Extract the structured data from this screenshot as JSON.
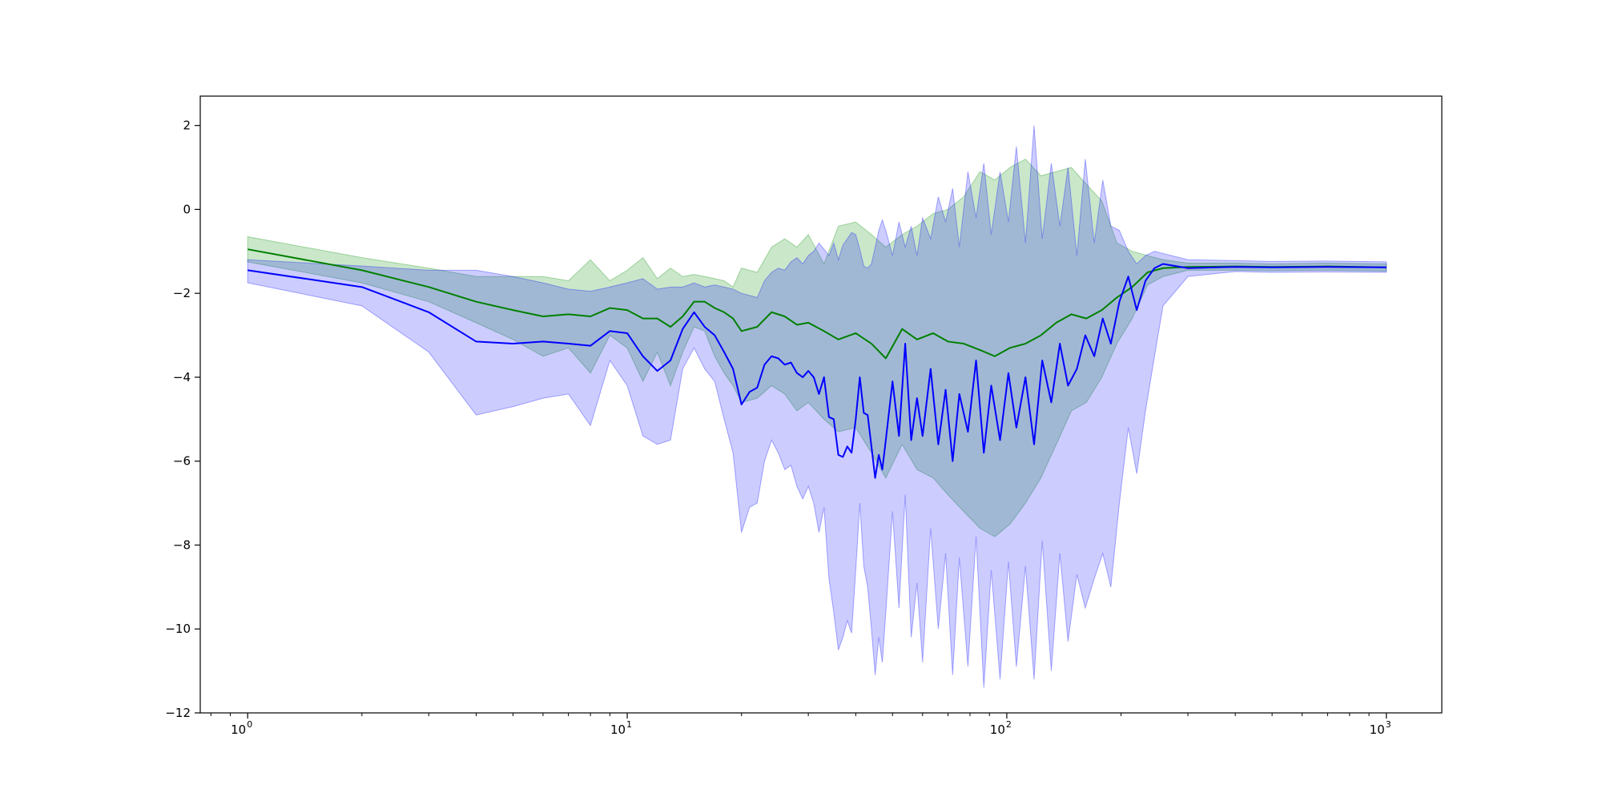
{
  "chart_data": {
    "type": "line",
    "title": "",
    "xlabel": "",
    "ylabel": "",
    "x_scale": "log",
    "xlim": [
      0.75,
      1400
    ],
    "ylim": [
      -12,
      2.7
    ],
    "grid": false,
    "legend": "none",
    "x_ticks": [
      {
        "value": 1,
        "base": "10",
        "exp": "0"
      },
      {
        "value": 10,
        "base": "10",
        "exp": "1"
      },
      {
        "value": 100,
        "base": "10",
        "exp": "2"
      },
      {
        "value": 1000,
        "base": "10",
        "exp": "3"
      }
    ],
    "y_ticks": [
      {
        "value": 2,
        "label": "2"
      },
      {
        "value": 0,
        "label": "0"
      },
      {
        "value": -2,
        "label": "−2"
      },
      {
        "value": -4,
        "label": "−4"
      },
      {
        "value": -6,
        "label": "−6"
      },
      {
        "value": -8,
        "label": "−8"
      },
      {
        "value": -10,
        "label": "−10"
      },
      {
        "value": -12,
        "label": "−12"
      }
    ],
    "series": [
      {
        "color": "#008000",
        "band_color": "#2ca02c",
        "band_opacity": 0.25,
        "x": [
          1,
          2,
          3,
          4,
          5,
          6,
          7,
          8,
          9,
          10,
          11,
          12,
          13,
          14,
          15,
          16,
          17,
          18,
          19,
          20,
          22,
          24,
          26,
          28,
          30,
          33,
          36,
          40,
          44,
          48,
          53,
          58,
          64,
          70,
          77,
          85,
          93,
          102,
          112,
          123,
          135,
          148,
          162,
          178,
          195,
          214,
          235,
          258,
          300,
          400,
          500,
          700,
          1000
        ],
        "y": [
          -0.95,
          -1.45,
          -1.85,
          -2.2,
          -2.4,
          -2.55,
          -2.5,
          -2.55,
          -2.35,
          -2.4,
          -2.6,
          -2.6,
          -2.8,
          -2.55,
          -2.2,
          -2.2,
          -2.35,
          -2.45,
          -2.6,
          -2.9,
          -2.8,
          -2.45,
          -2.55,
          -2.75,
          -2.7,
          -2.9,
          -3.1,
          -2.95,
          -3.2,
          -3.55,
          -2.85,
          -3.1,
          -2.95,
          -3.15,
          -3.2,
          -3.35,
          -3.5,
          -3.3,
          -3.2,
          -3.0,
          -2.7,
          -2.5,
          -2.6,
          -2.4,
          -2.1,
          -1.85,
          -1.5,
          -1.4,
          -1.37,
          -1.36,
          -1.37,
          -1.36,
          -1.38
        ],
        "lower": [
          -1.25,
          -1.75,
          -2.2,
          -2.7,
          -3.1,
          -3.5,
          -3.3,
          -3.9,
          -3.0,
          -3.3,
          -4.1,
          -3.4,
          -4.2,
          -3.4,
          -2.8,
          -2.9,
          -3.5,
          -3.9,
          -4.2,
          -4.6,
          -4.5,
          -4.2,
          -4.4,
          -4.8,
          -4.6,
          -5.0,
          -5.3,
          -5.2,
          -5.8,
          -6.4,
          -5.6,
          -6.2,
          -6.4,
          -6.8,
          -7.2,
          -7.6,
          -7.8,
          -7.5,
          -7.0,
          -6.4,
          -5.6,
          -4.8,
          -4.6,
          -4.0,
          -3.2,
          -2.6,
          -1.8,
          -1.6,
          -1.45,
          -1.45,
          -1.46,
          -1.45,
          -1.47
        ],
        "upper": [
          -0.65,
          -1.15,
          -1.4,
          -1.6,
          -1.6,
          -1.6,
          -1.7,
          -1.2,
          -1.7,
          -1.45,
          -1.15,
          -1.65,
          -1.4,
          -1.6,
          -1.55,
          -1.6,
          -1.65,
          -1.7,
          -1.85,
          -1.4,
          -1.5,
          -0.9,
          -0.7,
          -0.9,
          -0.6,
          -1.3,
          -0.4,
          -0.3,
          -0.6,
          -0.9,
          -0.6,
          -0.4,
          -0.1,
          0.0,
          0.3,
          0.9,
          0.7,
          1.0,
          1.2,
          0.8,
          0.9,
          1.0,
          0.6,
          0.2,
          -0.8,
          -1.0,
          -1.1,
          -1.2,
          -1.28,
          -1.28,
          -1.3,
          -1.28,
          -1.3
        ]
      },
      {
        "color": "#0000ff",
        "band_color": "#0000ff",
        "band_opacity": 0.2,
        "x": [
          1,
          2,
          3,
          4,
          5,
          6,
          7,
          8,
          9,
          10,
          11,
          12,
          13,
          14,
          15,
          16,
          17,
          18,
          19,
          20,
          21,
          22,
          23,
          24,
          25,
          26,
          27,
          28,
          29,
          30,
          31,
          32,
          33,
          34,
          35,
          36,
          37,
          38,
          39,
          40,
          41,
          42,
          43,
          44,
          45,
          46,
          47,
          48,
          50,
          52,
          54,
          56,
          58,
          60,
          63,
          66,
          69,
          72,
          75,
          79,
          83,
          87,
          91,
          96,
          101,
          106,
          112,
          118,
          124,
          131,
          138,
          145,
          153,
          161,
          170,
          179,
          188,
          198,
          209,
          220,
          232,
          245,
          258,
          300,
          400,
          500,
          700,
          1000
        ],
        "y": [
          -1.45,
          -1.85,
          -2.45,
          -3.15,
          -3.2,
          -3.15,
          -3.2,
          -3.25,
          -2.9,
          -2.95,
          -3.5,
          -3.85,
          -3.6,
          -2.85,
          -2.45,
          -2.8,
          -3.0,
          -3.4,
          -3.8,
          -4.65,
          -4.35,
          -4.25,
          -3.7,
          -3.5,
          -3.55,
          -3.7,
          -3.65,
          -3.9,
          -4.0,
          -3.85,
          -4.0,
          -4.4,
          -4.0,
          -4.95,
          -5.0,
          -5.85,
          -5.9,
          -5.65,
          -5.8,
          -5.0,
          -4.0,
          -4.85,
          -4.9,
          -5.65,
          -6.4,
          -5.85,
          -6.2,
          -5.5,
          -4.1,
          -5.4,
          -3.2,
          -5.5,
          -4.5,
          -5.4,
          -3.8,
          -5.6,
          -4.3,
          -6.0,
          -4.4,
          -5.3,
          -3.6,
          -5.8,
          -4.2,
          -5.5,
          -3.9,
          -5.2,
          -4.0,
          -5.6,
          -3.6,
          -4.6,
          -3.2,
          -4.2,
          -3.8,
          -3.0,
          -3.5,
          -2.6,
          -3.2,
          -2.2,
          -1.6,
          -2.4,
          -1.7,
          -1.4,
          -1.3,
          -1.4,
          -1.37,
          -1.38,
          -1.37,
          -1.38
        ],
        "lower": [
          -1.75,
          -2.3,
          -3.4,
          -4.9,
          -4.7,
          -4.5,
          -4.4,
          -5.15,
          -3.6,
          -4.2,
          -5.4,
          -5.6,
          -5.5,
          -3.8,
          -3.3,
          -3.8,
          -4.1,
          -5.0,
          -5.8,
          -7.7,
          -7.1,
          -7.0,
          -6.0,
          -5.5,
          -5.8,
          -6.2,
          -6.1,
          -6.6,
          -6.9,
          -6.6,
          -7.0,
          -7.7,
          -7.1,
          -8.8,
          -9.6,
          -10.5,
          -10.2,
          -9.8,
          -10.1,
          -8.6,
          -7.0,
          -8.5,
          -9.0,
          -10.0,
          -11.1,
          -10.2,
          -10.8,
          -9.6,
          -7.2,
          -9.5,
          -6.8,
          -10.2,
          -8.9,
          -10.8,
          -7.6,
          -10.0,
          -8.2,
          -11.1,
          -8.3,
          -10.9,
          -7.8,
          -11.4,
          -8.6,
          -11.2,
          -8.4,
          -10.9,
          -8.5,
          -11.2,
          -7.9,
          -11.0,
          -8.2,
          -10.3,
          -8.7,
          -9.5,
          -8.8,
          -8.2,
          -9.0,
          -7.0,
          -5.2,
          -6.3,
          -4.8,
          -3.5,
          -2.3,
          -1.6,
          -1.48,
          -1.5,
          -1.49,
          -1.5
        ],
        "upper": [
          -1.2,
          -1.35,
          -1.45,
          -1.45,
          -1.6,
          -1.75,
          -1.9,
          -1.95,
          -1.85,
          -1.75,
          -1.65,
          -1.9,
          -1.85,
          -1.85,
          -1.75,
          -1.85,
          -1.8,
          -1.85,
          -1.9,
          -2.0,
          -2.05,
          -2.1,
          -1.7,
          -1.5,
          -1.4,
          -1.45,
          -1.25,
          -1.15,
          -1.3,
          -1.1,
          -1.0,
          -0.8,
          -0.95,
          -1.1,
          -0.8,
          -1.2,
          -0.85,
          -0.7,
          -0.55,
          -0.6,
          -0.95,
          -1.35,
          -1.4,
          -1.3,
          -0.9,
          -0.5,
          -0.25,
          -0.5,
          -1.1,
          -0.3,
          -0.9,
          -0.4,
          -1.1,
          -0.2,
          -0.7,
          0.3,
          -0.3,
          0.5,
          -0.9,
          0.9,
          -0.2,
          1.1,
          -0.6,
          0.9,
          -0.3,
          1.5,
          -0.8,
          2.0,
          -0.7,
          1.1,
          -0.4,
          1.0,
          -1.1,
          1.2,
          -0.8,
          0.7,
          -0.4,
          -0.5,
          -1.0,
          -1.3,
          -1.1,
          -1.0,
          -1.05,
          -1.2,
          -1.22,
          -1.24,
          -1.23,
          -1.25
        ]
      }
    ]
  }
}
